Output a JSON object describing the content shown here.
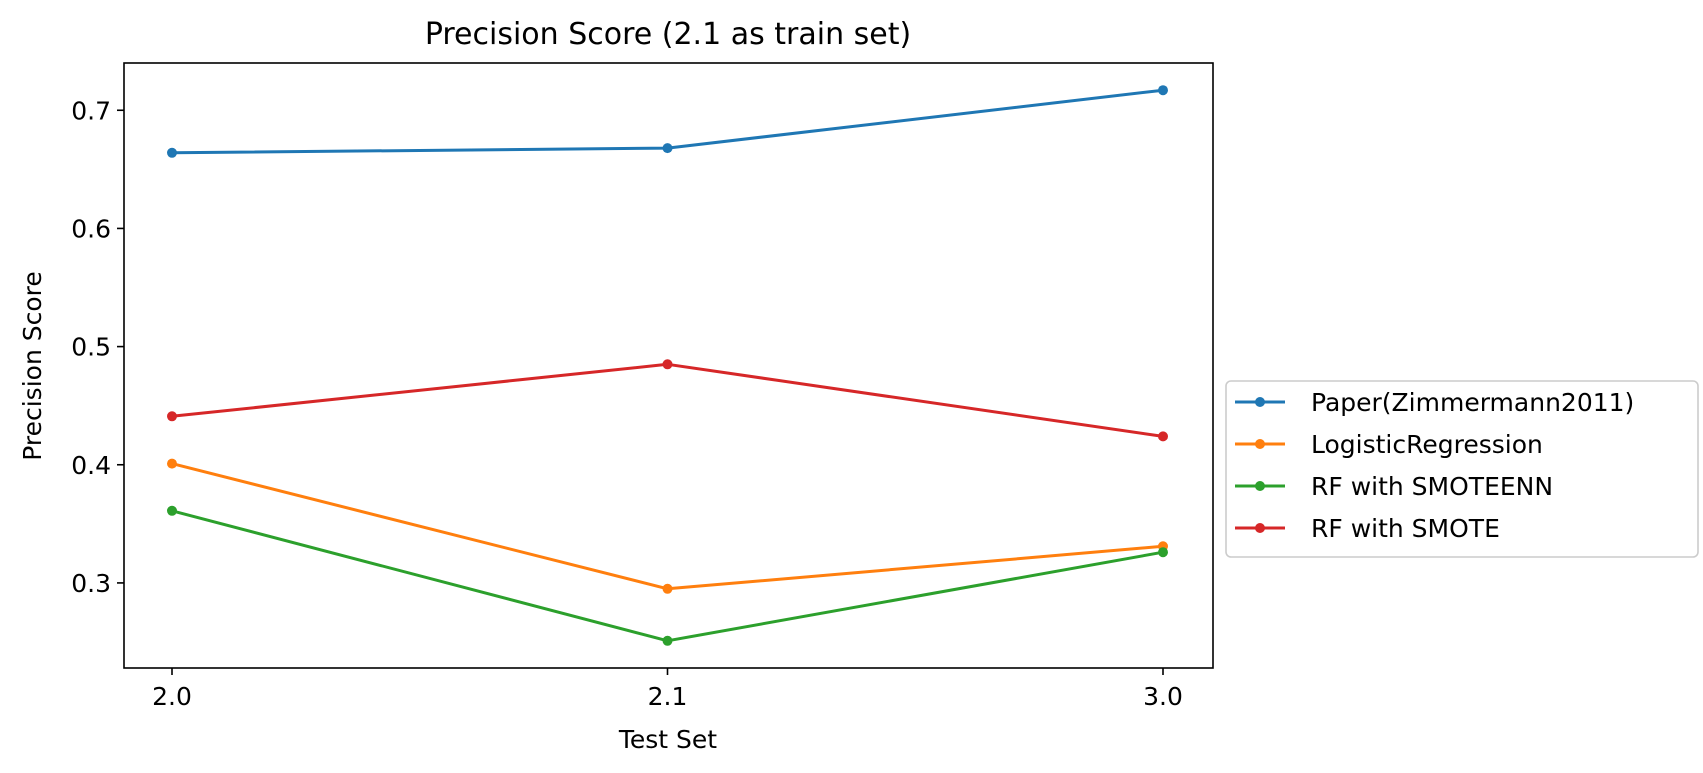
{
  "chart_data": {
    "type": "line",
    "title": "Precision Score (2.1 as train set)",
    "xlabel": "Test Set",
    "ylabel": "Precision Score",
    "x": [
      "2.0",
      "2.1",
      "3.0"
    ],
    "yticks": [
      "0.3",
      "0.4",
      "0.5",
      "0.6",
      "0.7"
    ],
    "ylim": [
      0.228,
      0.74
    ],
    "grid": false,
    "legend_position": "outside-right",
    "series": [
      {
        "name": "Paper(Zimmermann2011)",
        "color": "#1f77b4",
        "values": [
          0.664,
          0.668,
          0.717
        ]
      },
      {
        "name": "LogisticRegression",
        "color": "#ff7f0e",
        "values": [
          0.401,
          0.295,
          0.331
        ]
      },
      {
        "name": "RF with SMOTEENN",
        "color": "#2ca02c",
        "values": [
          0.361,
          0.251,
          0.326
        ]
      },
      {
        "name": "RF with SMOTE",
        "color": "#d62728",
        "values": [
          0.441,
          0.485,
          0.424
        ]
      }
    ]
  }
}
